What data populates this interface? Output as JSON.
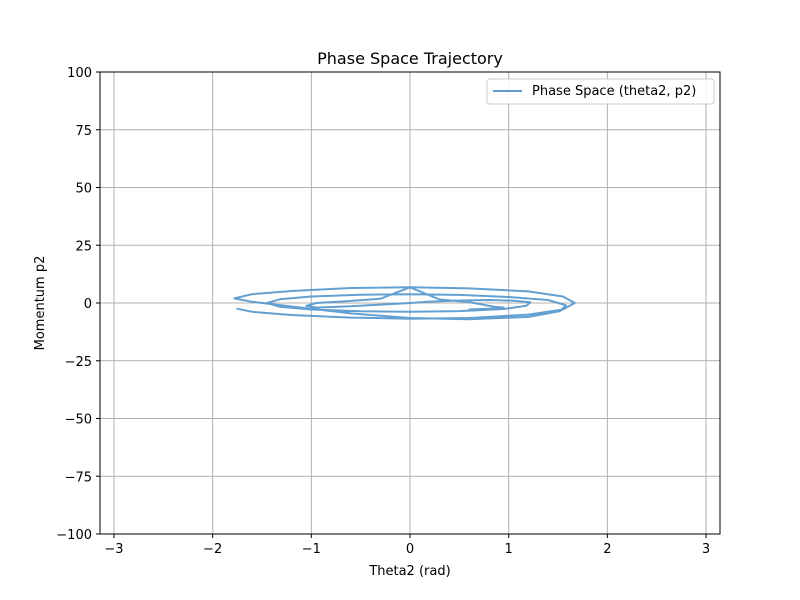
{
  "chart_data": {
    "type": "line",
    "title": "Phase Space Trajectory",
    "xlabel": "Theta2 (rad)",
    "ylabel": "Momentum p2",
    "xlim": [
      -3.1416,
      3.1416
    ],
    "ylim": [
      -100,
      100
    ],
    "xticks": [
      -3,
      -2,
      -1,
      0,
      1,
      2,
      3
    ],
    "xtick_labels": [
      "−3",
      "−2",
      "−1",
      "0",
      "1",
      "2",
      "3"
    ],
    "yticks": [
      -100,
      -75,
      -50,
      -25,
      0,
      25,
      50,
      75,
      100
    ],
    "ytick_labels": [
      "−100",
      "−75",
      "−50",
      "−25",
      "0",
      "25",
      "50",
      "75",
      "100"
    ],
    "grid": true,
    "legend_position": "top-right",
    "series": [
      {
        "name": "Phase Space (theta2, p2)",
        "color": "#5b9bd0",
        "x": [
          -1.75,
          -1.6,
          -1.2,
          -0.6,
          0,
          0.6,
          1.2,
          1.55,
          1.67,
          1.55,
          1.2,
          0.6,
          0,
          -0.6,
          -1.2,
          -1.6,
          -1.78,
          -1.6,
          -1.2,
          -0.6,
          0,
          0.6,
          1.2,
          1.52,
          1.58,
          1.4,
          1.0,
          0.5,
          0,
          -0.5,
          -1.0,
          -1.32,
          -1.45,
          -1.32,
          -1.0,
          -0.5,
          0,
          0.5,
          0.95,
          1.18,
          1.22,
          1.05,
          0.8,
          0.5,
          0.2,
          0,
          -0.3,
          -0.6,
          -0.95,
          -1.05,
          -0.95,
          -0.65,
          -0.3,
          0,
          0.3,
          0.6,
          0.85,
          0.95,
          0.85,
          0.6
        ],
        "y": [
          -2.5,
          -3.8,
          -5.2,
          -6.3,
          -6.8,
          -6.5,
          -5.0,
          -2.8,
          0,
          2.8,
          5.0,
          6.3,
          6.8,
          6.5,
          5.2,
          3.8,
          2.0,
          0.5,
          -1.5,
          -4.5,
          -6.5,
          -7.0,
          -6.0,
          -3.5,
          -1.0,
          1.3,
          2.6,
          3.5,
          3.8,
          3.6,
          2.8,
          1.6,
          0,
          -1.6,
          -2.8,
          -3.6,
          -3.8,
          -3.5,
          -2.6,
          -1.2,
          0.3,
          1.0,
          1.3,
          1.1,
          0.6,
          0,
          -0.7,
          -1.4,
          -2.0,
          -1.2,
          0,
          0.8,
          1.8,
          6.8,
          1.5,
          0.4,
          -1.6,
          -2.0,
          -2.4,
          -2.8
        ]
      }
    ]
  }
}
